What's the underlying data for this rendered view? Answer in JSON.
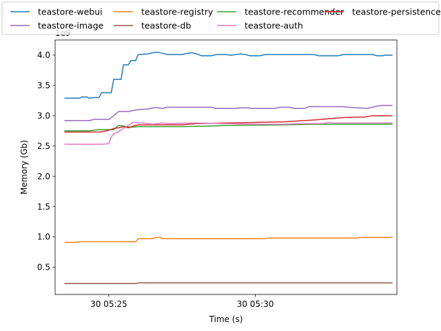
{
  "chart_data": {
    "type": "line",
    "title": "",
    "xlabel": "Time (s)",
    "ylabel": "Memory (Gb)",
    "y_offset_label": "1e9",
    "y_scale": 1000000000,
    "xlim": [
      "05:23:10",
      "05:34:50"
    ],
    "ylim": [
      0.05,
      4.25
    ],
    "x_ticks": [
      {
        "label": "30 05:25",
        "time": "05:25:00"
      },
      {
        "label": "30 05:30",
        "time": "05:30:00"
      }
    ],
    "y_ticks": [
      "0.5",
      "1.0",
      "1.5",
      "2.0",
      "2.5",
      "3.0",
      "3.5",
      "4.0"
    ],
    "grid": false,
    "legend": {
      "placement": "top, outside plot, 4 columns",
      "columns": 4
    },
    "series": [
      {
        "name": "teastore-webui",
        "color": "#1f77b4",
        "points": [
          [
            "05:23:30",
            3.29
          ],
          [
            "05:24:00",
            3.29
          ],
          [
            "05:24:05",
            3.31
          ],
          [
            "05:24:15",
            3.31
          ],
          [
            "05:24:20",
            3.29
          ],
          [
            "05:24:30",
            3.3
          ],
          [
            "05:24:40",
            3.3
          ],
          [
            "05:24:45",
            3.38
          ],
          [
            "05:25:05",
            3.38
          ],
          [
            "05:25:10",
            3.6
          ],
          [
            "05:25:25",
            3.6
          ],
          [
            "05:25:30",
            3.84
          ],
          [
            "05:25:40",
            3.84
          ],
          [
            "05:25:45",
            3.91
          ],
          [
            "05:25:55",
            3.91
          ],
          [
            "05:26:00",
            4.01
          ],
          [
            "05:26:20",
            4.02
          ],
          [
            "05:26:30",
            4.04
          ],
          [
            "05:26:40",
            4.05
          ],
          [
            "05:26:50",
            4.03
          ],
          [
            "05:27:00",
            4.01
          ],
          [
            "05:27:30",
            4.01
          ],
          [
            "05:27:40",
            4.03
          ],
          [
            "05:27:50",
            4.04
          ],
          [
            "05:28:00",
            4.02
          ],
          [
            "05:28:10",
            3.99
          ],
          [
            "05:28:30",
            3.99
          ],
          [
            "05:28:40",
            4.01
          ],
          [
            "05:29:00",
            4.01
          ],
          [
            "05:29:10",
            4.0
          ],
          [
            "05:29:30",
            4.02
          ],
          [
            "05:29:40",
            4.01
          ],
          [
            "05:29:50",
            3.99
          ],
          [
            "05:30:10",
            3.99
          ],
          [
            "05:30:20",
            4.01
          ],
          [
            "05:32:00",
            4.01
          ],
          [
            "05:32:10",
            3.99
          ],
          [
            "05:32:50",
            3.99
          ],
          [
            "05:33:00",
            4.01
          ],
          [
            "05:34:00",
            4.01
          ],
          [
            "05:34:10",
            3.99
          ],
          [
            "05:34:20",
            3.99
          ],
          [
            "05:34:25",
            4.0
          ],
          [
            "05:34:40",
            4.0
          ]
        ]
      },
      {
        "name": "teastore-registry",
        "color": "#ff7f0e",
        "points": [
          [
            "05:23:30",
            0.91
          ],
          [
            "05:23:50",
            0.91
          ],
          [
            "05:24:00",
            0.92
          ],
          [
            "05:25:55",
            0.92
          ],
          [
            "05:26:00",
            0.97
          ],
          [
            "05:26:30",
            0.97
          ],
          [
            "05:26:35",
            0.99
          ],
          [
            "05:26:45",
            0.99
          ],
          [
            "05:26:50",
            0.97
          ],
          [
            "05:30:20",
            0.97
          ],
          [
            "05:30:25",
            0.98
          ],
          [
            "05:33:30",
            0.98
          ],
          [
            "05:33:35",
            0.99
          ],
          [
            "05:34:35",
            0.99
          ],
          [
            "05:34:40",
            1.0
          ]
        ]
      },
      {
        "name": "teastore-recommender",
        "color": "#2ca02c",
        "points": [
          [
            "05:23:30",
            2.75
          ],
          [
            "05:24:20",
            2.75
          ],
          [
            "05:24:30",
            2.76
          ],
          [
            "05:24:40",
            2.77
          ],
          [
            "05:25:10",
            2.77
          ],
          [
            "05:25:20",
            2.84
          ],
          [
            "05:25:30",
            2.83
          ],
          [
            "05:25:45",
            2.81
          ],
          [
            "05:26:00",
            2.82
          ],
          [
            "05:27:30",
            2.82
          ],
          [
            "05:28:30",
            2.83
          ],
          [
            "05:29:00",
            2.84
          ],
          [
            "05:31:00",
            2.85
          ],
          [
            "05:32:00",
            2.86
          ],
          [
            "05:34:40",
            2.86
          ]
        ]
      },
      {
        "name": "teastore-persistence",
        "color": "#d62728",
        "points": [
          [
            "05:23:30",
            2.73
          ],
          [
            "05:24:40",
            2.73
          ],
          [
            "05:24:50",
            2.74
          ],
          [
            "05:25:00",
            2.76
          ],
          [
            "05:25:10",
            2.79
          ],
          [
            "05:25:20",
            2.8
          ],
          [
            "05:25:30",
            2.82
          ],
          [
            "05:25:40",
            2.8
          ],
          [
            "05:25:50",
            2.83
          ],
          [
            "05:26:00",
            2.85
          ],
          [
            "05:27:30",
            2.85
          ],
          [
            "05:28:00",
            2.87
          ],
          [
            "05:29:00",
            2.88
          ],
          [
            "05:30:00",
            2.89
          ],
          [
            "05:31:00",
            2.9
          ],
          [
            "05:32:00",
            2.93
          ],
          [
            "05:32:30",
            2.95
          ],
          [
            "05:33:00",
            2.97
          ],
          [
            "05:33:45",
            2.98
          ],
          [
            "05:34:00",
            3.0
          ],
          [
            "05:34:40",
            3.0
          ]
        ]
      },
      {
        "name": "teastore-image",
        "color": "#9467bd",
        "points": [
          [
            "05:23:30",
            2.92
          ],
          [
            "05:24:20",
            2.92
          ],
          [
            "05:24:30",
            2.94
          ],
          [
            "05:25:00",
            2.94
          ],
          [
            "05:25:10",
            3.0
          ],
          [
            "05:25:20",
            3.07
          ],
          [
            "05:25:40",
            3.07
          ],
          [
            "05:26:00",
            3.1
          ],
          [
            "05:26:20",
            3.11
          ],
          [
            "05:26:30",
            3.13
          ],
          [
            "05:26:40",
            3.13
          ],
          [
            "05:26:50",
            3.12
          ],
          [
            "05:27:00",
            3.14
          ],
          [
            "05:28:30",
            3.14
          ],
          [
            "05:28:40",
            3.12
          ],
          [
            "05:29:20",
            3.12
          ],
          [
            "05:29:30",
            3.13
          ],
          [
            "05:29:45",
            3.13
          ],
          [
            "05:29:50",
            3.12
          ],
          [
            "05:30:40",
            3.12
          ],
          [
            "05:30:50",
            3.14
          ],
          [
            "05:31:10",
            3.14
          ],
          [
            "05:31:20",
            3.12
          ],
          [
            "05:31:40",
            3.12
          ],
          [
            "05:31:50",
            3.15
          ],
          [
            "05:33:00",
            3.15
          ],
          [
            "05:33:10",
            3.14
          ],
          [
            "05:33:30",
            3.13
          ],
          [
            "05:33:50",
            3.12
          ],
          [
            "05:34:00",
            3.14
          ],
          [
            "05:34:10",
            3.16
          ],
          [
            "05:34:20",
            3.17
          ],
          [
            "05:34:40",
            3.17
          ]
        ]
      },
      {
        "name": "teastore-db",
        "color": "#8c564b",
        "points": [
          [
            "05:23:30",
            0.23
          ],
          [
            "05:25:00",
            0.23
          ],
          [
            "05:25:55",
            0.23
          ],
          [
            "05:26:00",
            0.24
          ],
          [
            "05:34:40",
            0.24
          ]
        ]
      },
      {
        "name": "teastore-auth",
        "color": "#e377c2",
        "points": [
          [
            "05:23:30",
            2.53
          ],
          [
            "05:24:50",
            2.53
          ],
          [
            "05:25:00",
            2.54
          ],
          [
            "05:25:05",
            2.65
          ],
          [
            "05:25:10",
            2.7
          ],
          [
            "05:25:20",
            2.74
          ],
          [
            "05:25:30",
            2.79
          ],
          [
            "05:25:40",
            2.84
          ],
          [
            "05:25:50",
            2.89
          ],
          [
            "05:26:10",
            2.88
          ],
          [
            "05:26:30",
            2.86
          ],
          [
            "05:26:50",
            2.88
          ],
          [
            "05:27:00",
            2.87
          ],
          [
            "05:28:00",
            2.88
          ],
          [
            "05:29:00",
            2.87
          ],
          [
            "05:30:00",
            2.86
          ],
          [
            "05:31:00",
            2.86
          ],
          [
            "05:31:30",
            2.87
          ],
          [
            "05:32:20",
            2.87
          ],
          [
            "05:32:30",
            2.89
          ],
          [
            "05:32:40",
            2.88
          ],
          [
            "05:34:40",
            2.88
          ]
        ]
      }
    ]
  }
}
